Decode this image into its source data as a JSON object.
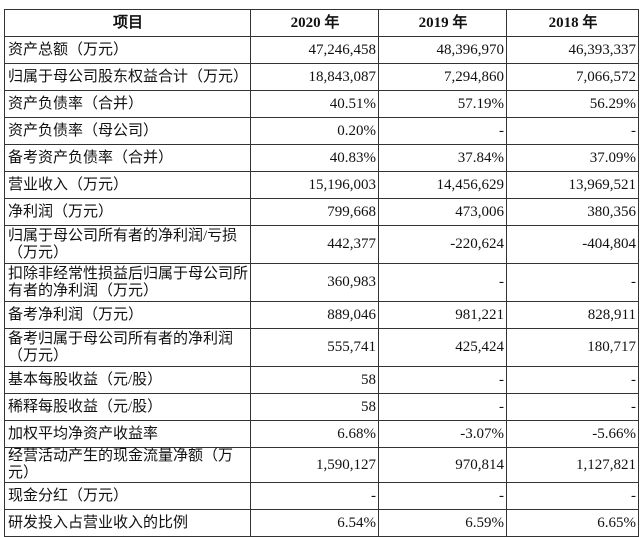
{
  "header": [
    "项目",
    "2020 年",
    "2019 年",
    "2018 年"
  ],
  "rows": [
    {
      "label": "资产总额（万元）",
      "v2020": "47,246,458",
      "v2019": "48,396,970",
      "v2018": "46,393,337"
    },
    {
      "label": "归属于母公司股东权益合计（万元）",
      "v2020": "18,843,087",
      "v2019": "7,294,860",
      "v2018": "7,066,572"
    },
    {
      "label": "资产负债率（合并）",
      "v2020": "40.51%",
      "v2019": "57.19%",
      "v2018": "56.29%"
    },
    {
      "label": "资产负债率（母公司）",
      "v2020": "0.20%",
      "v2019": "-",
      "v2018": "-"
    },
    {
      "label": "备考资产负债率（合并）",
      "v2020": "40.83%",
      "v2019": "37.84%",
      "v2018": "37.09%"
    },
    {
      "label": "营业收入（万元）",
      "v2020": "15,196,003",
      "v2019": "14,456,629",
      "v2018": "13,969,521"
    },
    {
      "label": "净利润（万元）",
      "v2020": "799,668",
      "v2019": "473,006",
      "v2018": "380,356"
    },
    {
      "label": "归属于母公司所有者的净利润/亏损（万元）",
      "v2020": "442,377",
      "v2019": "-220,624",
      "v2018": "-404,804"
    },
    {
      "label": "扣除非经常性损益后归属于母公司所有者的净利润（万元）",
      "v2020": "360,983",
      "v2019": "-",
      "v2018": "-"
    },
    {
      "label": "备考净利润（万元）",
      "v2020": "889,046",
      "v2019": "981,221",
      "v2018": "828,911"
    },
    {
      "label": "备考归属于母公司所有者的净利润（万元）",
      "v2020": "555,741",
      "v2019": "425,424",
      "v2018": "180,717"
    },
    {
      "label": "基本每股收益（元/股）",
      "v2020": "58",
      "v2019": "-",
      "v2018": "-"
    },
    {
      "label": "稀释每股收益（元/股）",
      "v2020": "58",
      "v2019": "-",
      "v2018": "-"
    },
    {
      "label": "加权平均净资产收益率",
      "v2020": "6.68%",
      "v2019": "-3.07%",
      "v2018": "-5.66%"
    },
    {
      "label": "经营活动产生的现金流量净额（万元）",
      "v2020": "1,590,127",
      "v2019": "970,814",
      "v2018": "1,127,821"
    },
    {
      "label": "现金分红（万元）",
      "v2020": "-",
      "v2019": "-",
      "v2018": "-"
    },
    {
      "label": "研发投入占营业收入的比例",
      "v2020": "6.54%",
      "v2019": "6.59%",
      "v2018": "6.65%"
    }
  ]
}
